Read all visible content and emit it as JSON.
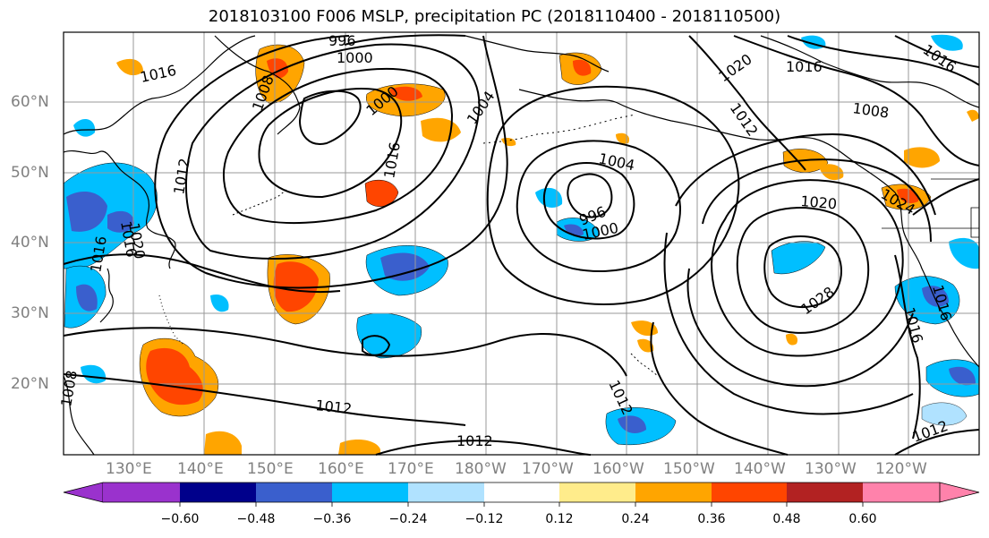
{
  "title": "2018103100 F006 MSLP, precipitation PC (2018110400 - 2018110500)",
  "map": {
    "lat_labels": [
      "60°N",
      "50°N",
      "40°N",
      "30°N",
      "20°N"
    ],
    "lon_labels": [
      "130°E",
      "140°E",
      "150°E",
      "160°E",
      "170°E",
      "180°W",
      "170°W",
      "160°W",
      "150°W",
      "140°W",
      "130°W",
      "120°W"
    ],
    "isobar_labels": [
      "996",
      "1000",
      "1016",
      "1008",
      "1000",
      "1004",
      "1020",
      "1016",
      "1016",
      "1012",
      "1008",
      "1012",
      "1016",
      "1020",
      "1004",
      "996",
      "1000",
      "1020",
      "1024",
      "1028",
      "1016",
      "1016",
      "1012",
      "1012",
      "1012",
      "1012",
      "1016",
      "1008",
      "1016"
    ]
  },
  "colorbar": {
    "colors": [
      "#9a32cd",
      "#00008b",
      "#3a5fcd",
      "#00bfff",
      "#b0e2ff",
      "#ffffff",
      "#ffec8b",
      "#ffa500",
      "#ff4500",
      "#b22222",
      "#ff82ab"
    ],
    "tick_labels": [
      "−0.60",
      "−0.48",
      "−0.36",
      "−0.24",
      "−0.12",
      "0.12",
      "0.24",
      "0.36",
      "0.48",
      "0.60"
    ]
  }
}
